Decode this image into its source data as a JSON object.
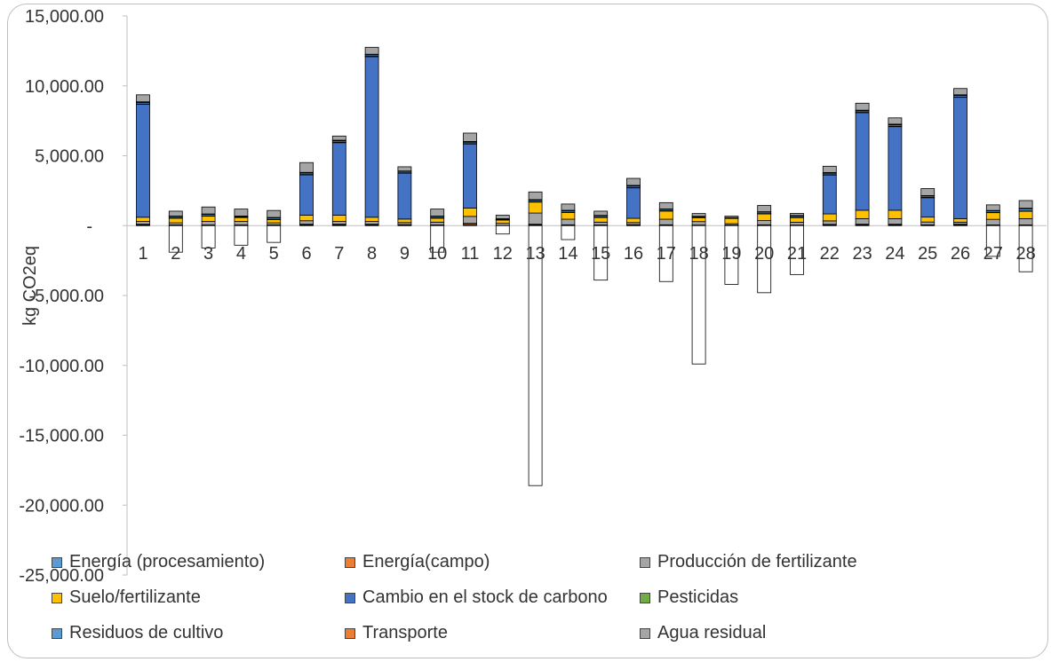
{
  "chart_data": {
    "type": "bar",
    "stacked": true,
    "ylabel": "kg CO2eq",
    "xlabel": "",
    "ylim": [
      -25000,
      15000
    ],
    "yticks": [
      15000,
      10000,
      5000,
      0,
      -5000,
      -10000,
      -15000,
      -20000,
      -25000
    ],
    "ytick_labels": [
      "15,000.00",
      "10,000.00",
      "5,000.00",
      "-",
      "-5,000.00",
      "-10,000.00",
      "-15,000.00",
      "-20,000.00",
      "-25,000.00"
    ],
    "grid": false,
    "legend_position": "bottom",
    "categories": [
      "1",
      "2",
      "3",
      "4",
      "5",
      "6",
      "7",
      "8",
      "9",
      "10",
      "11",
      "12",
      "13",
      "14",
      "15",
      "16",
      "17",
      "18",
      "19",
      "20",
      "21",
      "22",
      "23",
      "24",
      "25",
      "26",
      "27",
      "28"
    ],
    "series": [
      {
        "name": "Energía (procesamiento)",
        "color": "#5b9bd5",
        "values": [
          50,
          20,
          20,
          20,
          20,
          50,
          50,
          50,
          30,
          20,
          80,
          10,
          50,
          30,
          20,
          30,
          30,
          20,
          20,
          30,
          20,
          40,
          50,
          50,
          30,
          50,
          20,
          20
        ]
      },
      {
        "name": "Energía(campo)",
        "color": "#ed7d31",
        "values": [
          50,
          30,
          30,
          30,
          30,
          50,
          50,
          50,
          40,
          30,
          80,
          10,
          50,
          30,
          30,
          40,
          30,
          20,
          20,
          30,
          20,
          50,
          50,
          50,
          30,
          50,
          30,
          30
        ]
      },
      {
        "name": "Producción de fertilizante",
        "color": "#a5a5a5",
        "values": [
          200,
          150,
          250,
          250,
          150,
          250,
          200,
          200,
          150,
          200,
          500,
          150,
          800,
          400,
          200,
          150,
          400,
          250,
          100,
          300,
          200,
          250,
          400,
          400,
          200,
          150,
          400,
          450
        ]
      },
      {
        "name": "Suelo/fertilizante",
        "color": "#ffc000",
        "values": [
          300,
          350,
          400,
          300,
          250,
          400,
          450,
          300,
          250,
          300,
          600,
          250,
          800,
          500,
          350,
          300,
          600,
          300,
          400,
          500,
          350,
          500,
          600,
          600,
          350,
          250,
          500,
          550
        ]
      },
      {
        "name": "Cambio en el stock de carbono",
        "color": "#4472c4",
        "values": [
          8100,
          0,
          0,
          0,
          0,
          2900,
          5200,
          11500,
          3300,
          0,
          4600,
          0,
          0,
          0,
          0,
          2200,
          0,
          0,
          0,
          0,
          0,
          2800,
          7000,
          6000,
          1400,
          8700,
          0,
          0
        ]
      },
      {
        "name": "Pesticidas",
        "color": "#70ad47",
        "values": [
          10,
          5,
          5,
          5,
          5,
          10,
          10,
          10,
          10,
          5,
          10,
          5,
          10,
          5,
          5,
          10,
          5,
          5,
          5,
          5,
          5,
          10,
          10,
          10,
          10,
          10,
          5,
          5
        ]
      },
      {
        "name": "Residuos de cultivo",
        "color": "#5b9bd5",
        "values": [
          100,
          100,
          100,
          50,
          100,
          100,
          100,
          100,
          100,
          100,
          100,
          50,
          100,
          100,
          100,
          100,
          100,
          50,
          20,
          100,
          100,
          100,
          100,
          100,
          100,
          100,
          100,
          150
        ]
      },
      {
        "name": "Transporte",
        "color": "#ed7d31",
        "values": [
          50,
          30,
          30,
          30,
          30,
          50,
          50,
          50,
          30,
          30,
          50,
          20,
          50,
          30,
          30,
          50,
          30,
          20,
          10,
          30,
          30,
          50,
          50,
          50,
          30,
          50,
          30,
          40
        ]
      },
      {
        "name": "Agua residual",
        "color": "#a5a5a5",
        "values": [
          500,
          350,
          500,
          500,
          500,
          700,
          300,
          500,
          300,
          500,
          600,
          250,
          550,
          450,
          300,
          500,
          450,
          200,
          100,
          450,
          150,
          450,
          500,
          450,
          500,
          450,
          400,
          550
        ]
      },
      {
        "name": "",
        "color": "#ffffff",
        "values": [
          0,
          -1900,
          -1600,
          -1400,
          -1200,
          0,
          0,
          0,
          0,
          -1900,
          0,
          -600,
          -18600,
          -1000,
          -3900,
          0,
          -4000,
          -9900,
          -4200,
          -4800,
          -3500,
          0,
          0,
          0,
          0,
          0,
          -2200,
          -3300
        ]
      }
    ]
  }
}
